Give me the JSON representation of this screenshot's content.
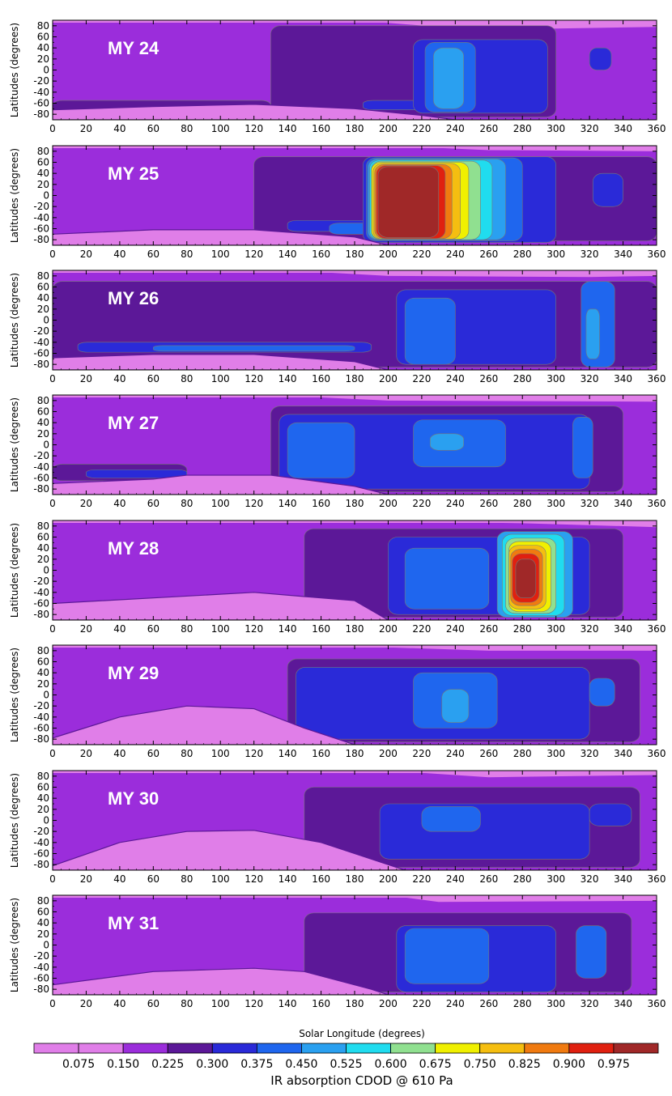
{
  "figure": {
    "colorbar_label": "IR absorption CDOD @ 610 Pa",
    "colorbar_ticks": [
      "0.075",
      "0.150",
      "0.225",
      "0.300",
      "0.375",
      "0.450",
      "0.525",
      "0.600",
      "0.675",
      "0.750",
      "0.825",
      "0.900",
      "0.975"
    ],
    "xlabel": "Solar Longitude (degrees)",
    "ylabel": "Latitudes (degrees)"
  },
  "chart_data": {
    "type": "heatmap",
    "description_quantity": "IR absorption CDOD @ 610 Pa",
    "x_axis": {
      "label": "Solar Longitude (degrees)",
      "range": [
        0,
        360
      ],
      "ticks": [
        0,
        20,
        40,
        60,
        80,
        100,
        120,
        140,
        160,
        180,
        200,
        220,
        240,
        260,
        280,
        300,
        320,
        340,
        360
      ]
    },
    "y_axis": {
      "label": "Latitudes (degrees)",
      "range": [
        -90,
        90
      ],
      "ticks": [
        80,
        60,
        40,
        20,
        0,
        -20,
        -40,
        -60,
        -80
      ]
    },
    "color_levels": [
      0.075,
      0.15,
      0.225,
      0.3,
      0.375,
      0.45,
      0.525,
      0.6,
      0.675,
      0.75,
      0.825,
      0.9,
      0.975
    ],
    "colors": [
      "#e07ee8",
      "#9b2ddb",
      "#5c1898",
      "#2a2ad8",
      "#1f66ee",
      "#2aa0f0",
      "#20dcef",
      "#90e090",
      "#f0f000",
      "#f5be10",
      "#f07a10",
      "#e02010",
      "#a02828"
    ],
    "panels": [
      {
        "label": "MY 24",
        "bg_level": 1,
        "south_cap": [
          [
            0,
            -72
          ],
          [
            60,
            -66
          ],
          [
            120,
            -62
          ],
          [
            180,
            -70
          ],
          [
            220,
            -82
          ],
          [
            240,
            -90
          ]
        ],
        "north_cap": [
          [
            180,
            90
          ],
          [
            230,
            78
          ],
          [
            300,
            75
          ],
          [
            360,
            78
          ]
        ],
        "blobs": [
          {
            "lon": [
              130,
              300
            ],
            "lat": [
              -85,
              80
            ],
            "level": 2
          },
          {
            "lon": [
              0,
              130
            ],
            "lat": [
              -82,
              -55
            ],
            "level": 2
          },
          {
            "lon": [
              185,
              230
            ],
            "lat": [
              -72,
              -55
            ],
            "level": 3
          },
          {
            "lon": [
              215,
              295
            ],
            "lat": [
              -78,
              55
            ],
            "level": 3
          },
          {
            "lon": [
              222,
              252
            ],
            "lat": [
              -76,
              50
            ],
            "level": 4
          },
          {
            "lon": [
              227,
              245
            ],
            "lat": [
              -70,
              40
            ],
            "level": 5
          },
          {
            "lon": [
              320,
              333
            ],
            "lat": [
              0,
              40
            ],
            "level": 3
          }
        ]
      },
      {
        "label": "MY 25",
        "bg_level": 1,
        "south_cap": [
          [
            0,
            -70
          ],
          [
            60,
            -62
          ],
          [
            120,
            -62
          ],
          [
            180,
            -75
          ],
          [
            200,
            -90
          ]
        ],
        "north_cap": [
          [
            200,
            90
          ],
          [
            260,
            82
          ],
          [
            360,
            80
          ]
        ],
        "blobs": [
          {
            "lon": [
              120,
              360
            ],
            "lat": [
              -82,
              70
            ],
            "level": 2
          },
          {
            "lon": [
              140,
              190
            ],
            "lat": [
              -65,
              -45
            ],
            "level": 3
          },
          {
            "lon": [
              165,
              190
            ],
            "lat": [
              -70,
              -50
            ],
            "level": 4
          },
          {
            "lon": [
              185,
              300
            ],
            "lat": [
              -85,
              70
            ],
            "level": 3
          },
          {
            "lon": [
              187,
              280
            ],
            "lat": [
              -82,
              68
            ],
            "level": 4
          },
          {
            "lon": [
              188,
              270
            ],
            "lat": [
              -80,
              66
            ],
            "level": 5
          },
          {
            "lon": [
              189,
              262
            ],
            "lat": [
              -80,
              64
            ],
            "level": 6
          },
          {
            "lon": [
              190,
              255
            ],
            "lat": [
              -80,
              62
            ],
            "level": 7
          },
          {
            "lon": [
              190,
              248
            ],
            "lat": [
              -79,
              60
            ],
            "level": 8
          },
          {
            "lon": [
              191,
              243
            ],
            "lat": [
              -79,
              58
            ],
            "level": 9
          },
          {
            "lon": [
              192,
              238
            ],
            "lat": [
              -78,
              56
            ],
            "level": 10
          },
          {
            "lon": [
              193,
              234
            ],
            "lat": [
              -78,
              54
            ],
            "level": 11
          },
          {
            "lon": [
              194,
              230
            ],
            "lat": [
              -76,
              52
            ],
            "level": 12
          },
          {
            "lon": [
              322,
              340
            ],
            "lat": [
              -20,
              40
            ],
            "level": 3
          }
        ]
      },
      {
        "label": "MY 26",
        "bg_level": 1,
        "south_cap": [
          [
            0,
            -68
          ],
          [
            60,
            -62
          ],
          [
            120,
            -62
          ],
          [
            180,
            -75
          ],
          [
            200,
            -90
          ]
        ],
        "north_cap": [
          [
            140,
            90
          ],
          [
            200,
            80
          ],
          [
            320,
            78
          ],
          [
            360,
            80
          ]
        ],
        "blobs": [
          {
            "lon": [
              0,
              360
            ],
            "lat": [
              -85,
              70
            ],
            "level": 2
          },
          {
            "lon": [
              15,
              190
            ],
            "lat": [
              -58,
              -40
            ],
            "level": 3
          },
          {
            "lon": [
              60,
              180
            ],
            "lat": [
              -56,
              -46
            ],
            "level": 4
          },
          {
            "lon": [
              205,
              300
            ],
            "lat": [
              -80,
              55
            ],
            "level": 3
          },
          {
            "lon": [
              210,
              240
            ],
            "lat": [
              -80,
              40
            ],
            "level": 4
          },
          {
            "lon": [
              315,
              335
            ],
            "lat": [
              -85,
              70
            ],
            "level": 4
          },
          {
            "lon": [
              318,
              326
            ],
            "lat": [
              -70,
              20
            ],
            "level": 5
          }
        ]
      },
      {
        "label": "MY 27",
        "bg_level": 1,
        "south_cap": [
          [
            0,
            -70
          ],
          [
            60,
            -62
          ],
          [
            80,
            -55
          ],
          [
            130,
            -55
          ],
          [
            180,
            -75
          ],
          [
            200,
            -90
          ]
        ],
        "north_cap": [
          [
            130,
            90
          ],
          [
            200,
            80
          ],
          [
            360,
            78
          ]
        ],
        "blobs": [
          {
            "lon": [
              130,
              340
            ],
            "lat": [
              -85,
              70
            ],
            "level": 2
          },
          {
            "lon": [
              0,
              80
            ],
            "lat": [
              -65,
              -35
            ],
            "level": 2
          },
          {
            "lon": [
              20,
              80
            ],
            "lat": [
              -60,
              -45
            ],
            "level": 3
          },
          {
            "lon": [
              135,
              320
            ],
            "lat": [
              -80,
              55
            ],
            "level": 3
          },
          {
            "lon": [
              140,
              180
            ],
            "lat": [
              -60,
              40
            ],
            "level": 4
          },
          {
            "lon": [
              215,
              270
            ],
            "lat": [
              -40,
              45
            ],
            "level": 4
          },
          {
            "lon": [
              225,
              245
            ],
            "lat": [
              -10,
              20
            ],
            "level": 5
          },
          {
            "lon": [
              310,
              322
            ],
            "lat": [
              -60,
              50
            ],
            "level": 4
          }
        ]
      },
      {
        "label": "MY 28",
        "bg_level": 1,
        "south_cap": [
          [
            0,
            -60
          ],
          [
            60,
            -50
          ],
          [
            120,
            -40
          ],
          [
            180,
            -55
          ],
          [
            200,
            -90
          ]
        ],
        "north_cap": [
          [
            180,
            90
          ],
          [
            280,
            85
          ],
          [
            360,
            78
          ]
        ],
        "blobs": [
          {
            "lon": [
              150,
              340
            ],
            "lat": [
              -85,
              75
            ],
            "level": 2
          },
          {
            "lon": [
              200,
              320
            ],
            "lat": [
              -80,
              60
            ],
            "level": 3
          },
          {
            "lon": [
              210,
              260
            ],
            "lat": [
              -70,
              40
            ],
            "level": 4
          },
          {
            "lon": [
              265,
              310
            ],
            "lat": [
              -85,
              70
            ],
            "level": 5
          },
          {
            "lon": [
              268,
              305
            ],
            "lat": [
              -82,
              65
            ],
            "level": 6
          },
          {
            "lon": [
              270,
              300
            ],
            "lat": [
              -78,
              58
            ],
            "level": 7
          },
          {
            "lon": [
              272,
              297
            ],
            "lat": [
              -75,
              52
            ],
            "level": 8
          },
          {
            "lon": [
              272,
              294
            ],
            "lat": [
              -70,
              45
            ],
            "level": 9
          },
          {
            "lon": [
              273,
              292
            ],
            "lat": [
              -64,
              38
            ],
            "level": 10
          },
          {
            "lon": [
              274,
              290
            ],
            "lat": [
              -58,
              30
            ],
            "level": 11
          },
          {
            "lon": [
              276,
              288
            ],
            "lat": [
              -50,
              20
            ],
            "level": 12
          }
        ]
      },
      {
        "label": "MY 29",
        "bg_level": 1,
        "south_cap": [
          [
            0,
            -78
          ],
          [
            40,
            -40
          ],
          [
            80,
            -20
          ],
          [
            120,
            -25
          ],
          [
            150,
            -60
          ],
          [
            180,
            -90
          ]
        ],
        "north_cap": [
          [
            160,
            90
          ],
          [
            260,
            80
          ],
          [
            360,
            80
          ]
        ],
        "blobs": [
          {
            "lon": [
              140,
              350
            ],
            "lat": [
              -85,
              65
            ],
            "level": 2
          },
          {
            "lon": [
              145,
              320
            ],
            "lat": [
              -80,
              50
            ],
            "level": 3
          },
          {
            "lon": [
              215,
              265
            ],
            "lat": [
              -60,
              40
            ],
            "level": 4
          },
          {
            "lon": [
              232,
              248
            ],
            "lat": [
              -50,
              10
            ],
            "level": 5
          },
          {
            "lon": [
              320,
              335
            ],
            "lat": [
              -20,
              30
            ],
            "level": 4
          }
        ]
      },
      {
        "label": "MY 30",
        "bg_level": 1,
        "south_cap": [
          [
            0,
            -82
          ],
          [
            40,
            -40
          ],
          [
            80,
            -20
          ],
          [
            120,
            -18
          ],
          [
            160,
            -40
          ],
          [
            200,
            -80
          ],
          [
            210,
            -90
          ]
        ],
        "north_cap": [
          [
            200,
            90
          ],
          [
            260,
            78
          ],
          [
            360,
            82
          ]
        ],
        "blobs": [
          {
            "lon": [
              150,
              350
            ],
            "lat": [
              -85,
              60
            ],
            "level": 2
          },
          {
            "lon": [
              195,
              320
            ],
            "lat": [
              -70,
              30
            ],
            "level": 3
          },
          {
            "lon": [
              220,
              255
            ],
            "lat": [
              -20,
              25
            ],
            "level": 4
          },
          {
            "lon": [
              320,
              345
            ],
            "lat": [
              -10,
              30
            ],
            "level": 3
          }
        ]
      },
      {
        "label": "MY 31",
        "bg_level": 1,
        "south_cap": [
          [
            0,
            -72
          ],
          [
            60,
            -48
          ],
          [
            120,
            -42
          ],
          [
            150,
            -48
          ],
          [
            190,
            -80
          ],
          [
            200,
            -90
          ]
        ],
        "north_cap": [
          [
            200,
            90
          ],
          [
            230,
            78
          ],
          [
            360,
            80
          ]
        ],
        "blobs": [
          {
            "lon": [
              150,
              345
            ],
            "lat": [
              -85,
              58
            ],
            "level": 2
          },
          {
            "lon": [
              205,
              300
            ],
            "lat": [
              -85,
              35
            ],
            "level": 3
          },
          {
            "lon": [
              210,
              260
            ],
            "lat": [
              -70,
              30
            ],
            "level": 4
          },
          {
            "lon": [
              312,
              330
            ],
            "lat": [
              -60,
              35
            ],
            "level": 4
          }
        ]
      }
    ]
  }
}
